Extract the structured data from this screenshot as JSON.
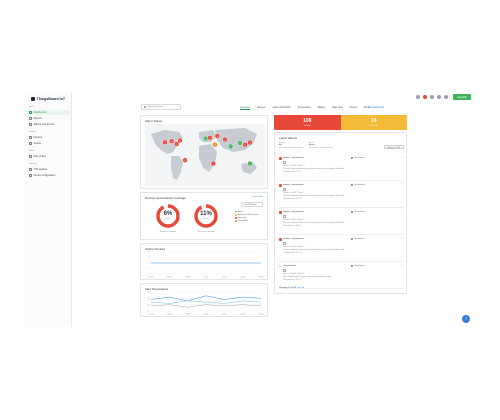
{
  "app": {
    "brand": "ThingsBoard IoT"
  },
  "topbar": {
    "upgrade_label": "Upgrade",
    "icons": [
      "notifications-icon",
      "help-icon",
      "settings-icon",
      "account-icon"
    ]
  },
  "sidebar": {
    "sections": [
      {
        "heading": "Home",
        "items": [
          {
            "label": "Dashboards",
            "icon": "dashboard-icon",
            "active": true
          },
          {
            "label": "Reports",
            "icon": "report-icon"
          },
          {
            "label": "Alarms and devices",
            "icon": "alarm-icon"
          }
        ]
      },
      {
        "heading": "Entities",
        "items": [
          {
            "label": "Devices",
            "icon": "device-icon"
          },
          {
            "label": "Assets",
            "icon": "asset-icon"
          }
        ]
      },
      {
        "heading": "Rules",
        "items": [
          {
            "label": "Rule chains",
            "icon": "rule-icon"
          }
        ]
      },
      {
        "heading": "Settings",
        "items": [
          {
            "label": "OTA updates",
            "icon": "update-icon"
          },
          {
            "label": "Device configuration",
            "icon": "config-icon"
          }
        ]
      }
    ]
  },
  "header": {
    "search_placeholder": "Search devices",
    "tabs": [
      "Overview",
      "Devices",
      "Alarm thresholds",
      "Temperature",
      "Battery",
      "Map view",
      "Assets",
      "More"
    ],
    "active_tab": 0,
    "edit_label": "Edit dashboard"
  },
  "alarm_status": {
    "title": "Alarm Status"
  },
  "coverage": {
    "title": "Devices and network coverage",
    "view_more": "View more",
    "select_value": "Last 24 hours",
    "donuts": [
      {
        "pct": "6%",
        "sub": "Online",
        "caption": "Devices in coverage",
        "value": 0.06,
        "color": "#e8483a"
      },
      {
        "pct": "11%",
        "sub": "Active",
        "caption": "With active coverage",
        "value": 0.11,
        "color": "#e8483a"
      }
    ],
    "legend": [
      {
        "label": "Active",
        "color": "#3cb55a"
      },
      {
        "label": "Active (last 24h) no data",
        "color": "#f3bb38"
      },
      {
        "label": "Not active",
        "color": "#e8483a"
      },
      {
        "label": "Unavailable",
        "color": "#f08a24"
      }
    ]
  },
  "chart_1": {
    "title": "Online Devices",
    "chart_data": {
      "type": "line",
      "categories": [
        "07:00",
        "08:00",
        "09:00",
        "10:00",
        "11:00",
        "12:00",
        "13:00"
      ],
      "series": [
        {
          "values": [
            4,
            4,
            4,
            4,
            4,
            4,
            4
          ],
          "color": "#3a8bd8"
        }
      ],
      "ylim": [
        0,
        8
      ],
      "yticks": [
        "8",
        "6",
        "4",
        "2",
        "0"
      ]
    }
  },
  "chart_2": {
    "title": "Inlet Temperature",
    "chart_data": {
      "type": "line",
      "categories": [
        "07:00",
        "08:00",
        "09:00",
        "10:00",
        "11:00",
        "12:00",
        "13:00"
      ],
      "series": [
        {
          "values": [
            24,
            26,
            23,
            27,
            24,
            26,
            25
          ],
          "color": "#3a8bd8"
        },
        {
          "values": [
            22,
            21,
            23,
            22,
            21,
            23,
            22
          ],
          "color": "#6fc1d8"
        },
        {
          "values": [
            19,
            20,
            18,
            20,
            19,
            20,
            19
          ],
          "color": "#9aa5b4"
        }
      ],
      "ylim": [
        15,
        30
      ],
      "yticks": [
        "30",
        "25",
        "20",
        "15"
      ]
    }
  },
  "stats": {
    "critical": {
      "value": "108",
      "label": "Critical"
    },
    "warning": {
      "value": "14",
      "label": "Warning"
    }
  },
  "latest_alarms": {
    "title": "Latest alarms",
    "filters": [
      {
        "label": "Severity",
        "value": "All"
      },
      {
        "label": "Status",
        "value": "Active"
      }
    ],
    "export_label": "Export to CSV",
    "items": [
      {
        "severity": "critical",
        "title": "Battery Temperature",
        "status": "Unresolved",
        "lines": [
          "Device: Lab-01 / Rack 3",
          "The unit reported battery temperature above the configured threshold.",
          "Temperature: 61.2 °C"
        ]
      },
      {
        "severity": "critical",
        "title": "Battery Temperature",
        "status": "Unresolved",
        "lines": [
          "Device: Lab-02 / Rack 1",
          "The unit reported battery temperature above the configured threshold.",
          "Temperature: 58.9 °C"
        ]
      },
      {
        "severity": "critical",
        "title": "Battery Temperature",
        "status": "Unresolved",
        "lines": [
          "Device: Lab-03 / Rack 2",
          "The unit reported battery temperature above the configured threshold.",
          "Temperature: 60.4 °C"
        ]
      },
      {
        "severity": "critical",
        "title": "Battery Temperature",
        "status": "Unresolved",
        "lines": [
          "Device: Lab-04 / Rack 5",
          "The unit reported battery temperature above the configured threshold.",
          "Temperature: 59.7 °C"
        ]
      },
      {
        "severity": "warning",
        "title": "Temperature",
        "status": "Unresolved",
        "lines": [
          "Device: Lab-05 / Rack 4",
          "Inlet temperature is higher than expected for this zone.",
          "Temperature: 31.5 °C"
        ]
      }
    ],
    "show_all_prefix": "Showing 5 of 108",
    "show_all_link": "View all"
  },
  "map": {
    "land_color": "#c7ccd3",
    "ocean_color": "#f4f5f7",
    "markers": [
      {
        "lon": -100,
        "lat": 40,
        "count": "4",
        "severity": "critical"
      },
      {
        "lon": -75,
        "lat": 42,
        "count": "3",
        "severity": "critical"
      },
      {
        "lon": -85,
        "lat": 32,
        "count": "2",
        "severity": "critical"
      },
      {
        "lon": -120,
        "lat": 37,
        "count": "1",
        "severity": "critical"
      },
      {
        "lon": -60,
        "lat": -15,
        "count": "3",
        "severity": "critical"
      },
      {
        "lon": 2,
        "lat": 48,
        "count": "5",
        "severity": "ok"
      },
      {
        "lon": 15,
        "lat": 50,
        "count": "2",
        "severity": "critical"
      },
      {
        "lon": 30,
        "lat": 30,
        "count": "1",
        "severity": "warning"
      },
      {
        "lon": 37,
        "lat": 55,
        "count": "3",
        "severity": "critical"
      },
      {
        "lon": 77,
        "lat": 25,
        "count": "2",
        "severity": "ok"
      },
      {
        "lon": 105,
        "lat": 35,
        "count": "6",
        "severity": "ok"
      },
      {
        "lon": 120,
        "lat": 30,
        "count": "2",
        "severity": "critical"
      },
      {
        "lon": 135,
        "lat": 36,
        "count": "4",
        "severity": "critical"
      },
      {
        "lon": 25,
        "lat": -25,
        "count": "1",
        "severity": "critical"
      },
      {
        "lon": 135,
        "lat": -25,
        "count": "2",
        "severity": "ok"
      },
      {
        "lon": 60,
        "lat": 45,
        "count": "1",
        "severity": "critical"
      }
    ]
  },
  "help": {
    "label": "?"
  }
}
